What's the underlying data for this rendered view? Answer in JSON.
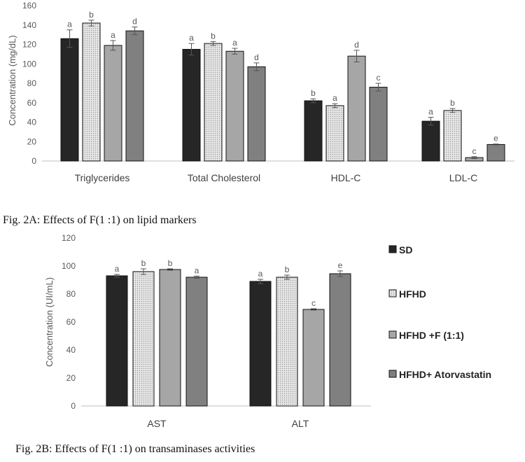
{
  "chart_data": [
    {
      "type": "bar",
      "caption": "Fig. 2A: Effects of F(1 :1) on  lipid markers",
      "ylabel": "Concentration (mg/dL)",
      "ylim": [
        0,
        160
      ],
      "yticks": [
        0,
        20,
        40,
        60,
        80,
        100,
        120,
        140,
        160
      ],
      "categories": [
        "Triglycerides",
        "Total Cholesterol",
        "HDL-C",
        "LDL-C"
      ],
      "series": [
        {
          "name": "SD",
          "values": [
            126,
            115,
            62,
            41
          ],
          "errors": [
            9,
            6,
            2,
            4
          ],
          "letters": [
            "a",
            "a",
            "b",
            "a"
          ]
        },
        {
          "name": "HFHD",
          "values": [
            142,
            121,
            57,
            52
          ],
          "errors": [
            3,
            2,
            2,
            2
          ],
          "letters": [
            "b",
            "b",
            "a",
            "b"
          ]
        },
        {
          "name": "HFHD +F (1:1)",
          "values": [
            119,
            113,
            108,
            3.5
          ],
          "errors": [
            5,
            3,
            6,
            1
          ],
          "letters": [
            "a",
            "a",
            "d",
            "c"
          ]
        },
        {
          "name": "HFHD+ Atorvastatin",
          "values": [
            134,
            97,
            76,
            17
          ],
          "errors": [
            4,
            4,
            4,
            0.5
          ],
          "letters": [
            "d",
            "d",
            "c",
            "e"
          ]
        }
      ]
    },
    {
      "type": "bar",
      "caption": "Fig. 2B: Effects of F(1 :1) on  transaminases activities",
      "ylabel": "Concentration (UI/mL)",
      "ylim": [
        0,
        120
      ],
      "yticks": [
        0,
        20,
        40,
        60,
        80,
        100,
        120
      ],
      "categories": [
        "AST",
        "ALT"
      ],
      "series": [
        {
          "name": "SD",
          "values": [
            93,
            89
          ],
          "errors": [
            1,
            1.5
          ],
          "letters": [
            "a",
            "a"
          ]
        },
        {
          "name": "HFHD",
          "values": [
            96,
            92
          ],
          "errors": [
            2,
            1.5
          ],
          "letters": [
            "b",
            "b"
          ]
        },
        {
          "name": "HFHD +F (1:1)",
          "values": [
            97.5,
            69
          ],
          "errors": [
            0.5,
            0.5
          ],
          "letters": [
            "b",
            "c"
          ]
        },
        {
          "name": "HFHD+ Atorvastatin",
          "values": [
            92,
            94.5
          ],
          "errors": [
            0.8,
            2
          ],
          "letters": [
            "a",
            "e"
          ]
        }
      ]
    }
  ],
  "colors": {
    "SD": "#262626",
    "HFHD": "#d9d9d9",
    "HFHD +F (1:1)": "#a6a6a6",
    "HFHD+ Atorvastatin": "#808080",
    "axis": "#bfbfbf",
    "text": "#595959"
  }
}
